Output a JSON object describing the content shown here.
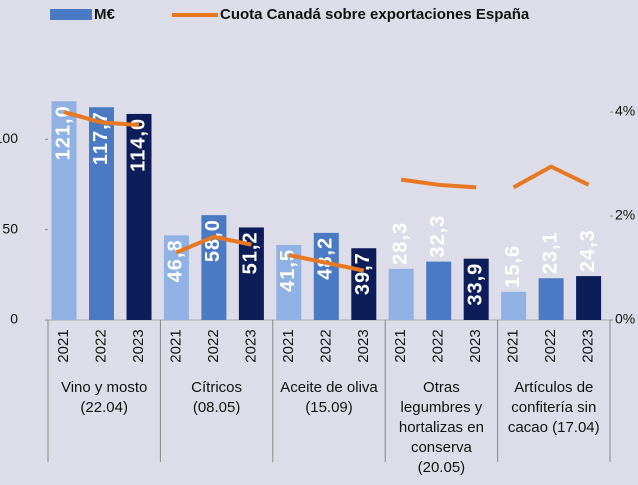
{
  "chart_data": {
    "type": "bar",
    "categories": [
      "2021",
      "2022",
      "2023",
      "2021",
      "2022",
      "2023",
      "2021",
      "2022",
      "2023",
      "2021",
      "2022",
      "2023",
      "2021",
      "2022",
      "2023"
    ],
    "groups": [
      [
        "Vino y mosto",
        "(22.04)"
      ],
      [
        "Cítricos",
        "(08.05)"
      ],
      [
        "Aceite de oliva",
        "(15.09)"
      ],
      [
        "Otras",
        "legumbres y",
        "hortalizas en",
        "conserva",
        "(20.05)"
      ],
      [
        "Artículos de",
        "confitería sin",
        "cacao (17.04)"
      ]
    ],
    "year_colors": [
      "#8fb1e3",
      "#4a7ac4",
      "#0c1d5a"
    ],
    "series": [
      {
        "name": "M€",
        "type": "bar",
        "color": "#4a7ac4",
        "values": [
          121.0,
          117.7,
          114.0,
          46.8,
          58.0,
          51.2,
          41.5,
          48.2,
          39.7,
          28.3,
          32.3,
          33.9,
          15.6,
          23.1,
          24.3
        ],
        "value_labels": [
          "121,0",
          "117,7",
          "114,0",
          "46,8",
          "58,0",
          "51,2",
          "41,5",
          "48,2",
          "39,7",
          "28,3",
          "32,3",
          "33,9",
          "15,6",
          "23,1",
          "24,3"
        ]
      },
      {
        "name": "Cuota Canadá sobre exportaciones España",
        "type": "line",
        "axis": "y2",
        "color": "#e8771f",
        "values": [
          4.0,
          3.8,
          3.75,
          1.3,
          1.6,
          1.45,
          1.25,
          1.1,
          0.95,
          2.7,
          2.6,
          2.55,
          2.55,
          2.95,
          2.6
        ]
      }
    ],
    "ylim": [
      0,
      130
    ],
    "yticks": [
      0,
      50,
      100
    ],
    "y2lim": [
      0,
      4.52
    ],
    "y2ticks": [
      {
        "value": 0,
        "label": "0%"
      },
      {
        "value": 2,
        "label": "2%"
      },
      {
        "value": 4,
        "label": "4%"
      }
    ]
  }
}
